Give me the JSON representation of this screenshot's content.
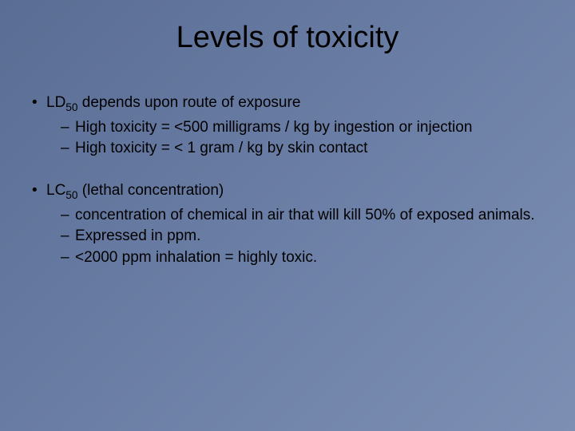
{
  "background_gradient": [
    "#5a6d94",
    "#6b7ea5",
    "#7d8fb3"
  ],
  "text_color": "#000000",
  "title": {
    "text": "Levels of toxicity",
    "fontsize": 38,
    "fontweight": 400,
    "align": "center"
  },
  "body_fontsize": 19,
  "groups": [
    {
      "lead": {
        "pre": "LD",
        "sub": "50",
        "post": " depends upon route of exposure"
      },
      "subs": [
        "High toxicity = <500 milligrams / kg by ingestion or injection",
        "High toxicity = < 1 gram / kg by skin contact"
      ]
    },
    {
      "lead": {
        "pre": "LC",
        "sub": "50",
        "post": " (lethal concentration)"
      },
      "subs": [
        "concentration of chemical in air that will kill 50% of exposed animals.",
        "Expressed in ppm.",
        "<2000 ppm inhalation = highly toxic."
      ]
    }
  ]
}
